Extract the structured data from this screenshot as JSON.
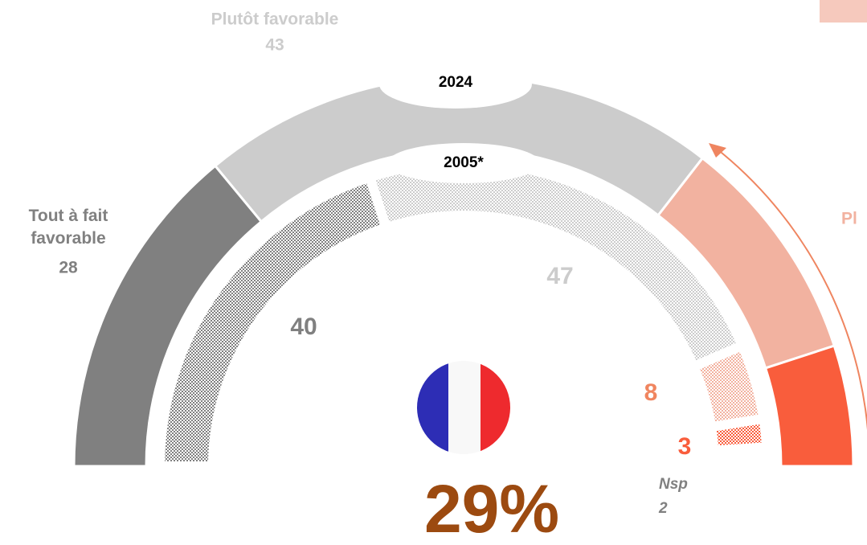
{
  "chart_data": {
    "type": "semi_donut",
    "categories": [
      "Tout à fait favorable",
      "Plutôt favorable",
      "Pl",
      null,
      "Nsp"
    ],
    "colors": [
      "#808080",
      "#cccccc",
      "#f2b2a0",
      "#f95d3c",
      null
    ],
    "series": [
      {
        "name": "2024",
        "values": [
          28,
          43,
          19,
          10,
          null
        ]
      },
      {
        "name": "2005*",
        "values": [
          40,
          47,
          8,
          3,
          2
        ]
      }
    ],
    "annotation": "29%"
  }
}
